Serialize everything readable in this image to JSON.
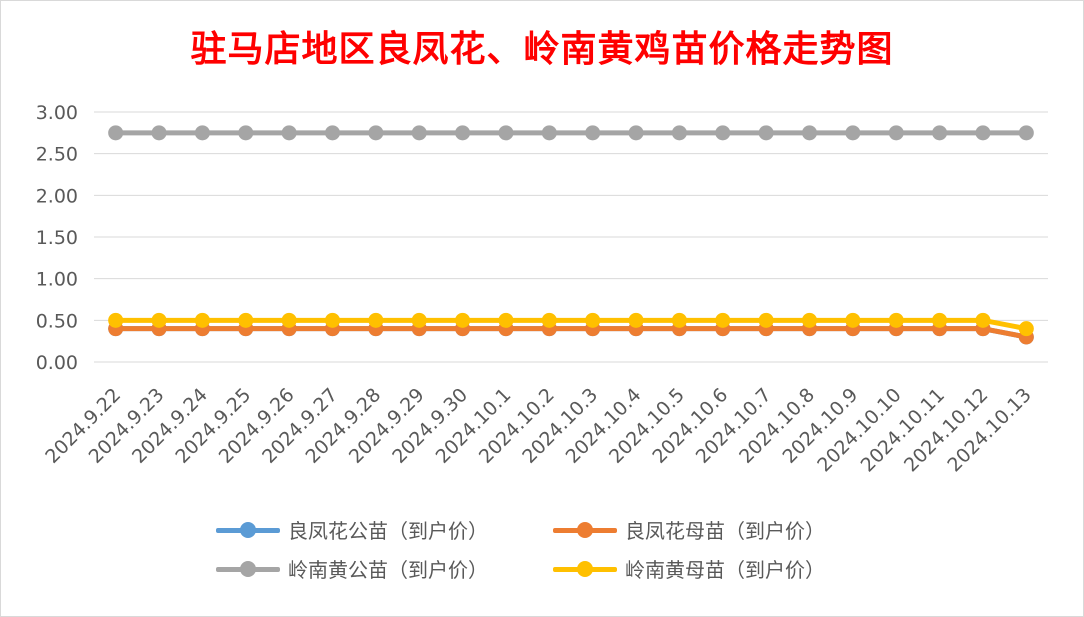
{
  "chart_data": {
    "type": "line",
    "title": "驻马店地区良凤花、岭南黄鸡苗价格走势图",
    "categories": [
      "2024.9.22",
      "2024.9.23",
      "2024.9.24",
      "2024.9.25",
      "2024.9.26",
      "2024.9.27",
      "2024.9.28",
      "2024.9.29",
      "2024.9.30",
      "2024.10.1",
      "2024.10.2",
      "2024.10.3",
      "2024.10.4",
      "2024.10.5",
      "2024.10.6",
      "2024.10.7",
      "2024.10.8",
      "2024.10.9",
      "2024.10.10",
      "2024.10.11",
      "2024.10.12",
      "2024.10.13"
    ],
    "y_ticks": [
      "0.00",
      "0.50",
      "1.00",
      "1.50",
      "2.00",
      "2.50",
      "3.00"
    ],
    "ylim": [
      0,
      3
    ],
    "grid": true,
    "legend_position": "bottom",
    "series": [
      {
        "name": "良凤花公苗（到户价）",
        "color": "#5b9bd5",
        "values": [
          0.4,
          0.4,
          0.4,
          0.4,
          0.4,
          0.4,
          0.4,
          0.4,
          0.4,
          0.4,
          0.4,
          0.4,
          0.4,
          0.4,
          0.4,
          0.4,
          0.4,
          0.4,
          0.4,
          0.4,
          0.4,
          0.3
        ]
      },
      {
        "name": "良凤花母苗（到户价）",
        "color": "#ed7d31",
        "values": [
          0.4,
          0.4,
          0.4,
          0.4,
          0.4,
          0.4,
          0.4,
          0.4,
          0.4,
          0.4,
          0.4,
          0.4,
          0.4,
          0.4,
          0.4,
          0.4,
          0.4,
          0.4,
          0.4,
          0.4,
          0.4,
          0.3
        ]
      },
      {
        "name": "岭南黄公苗（到户价）",
        "color": "#a5a5a5",
        "values": [
          2.75,
          2.75,
          2.75,
          2.75,
          2.75,
          2.75,
          2.75,
          2.75,
          2.75,
          2.75,
          2.75,
          2.75,
          2.75,
          2.75,
          2.75,
          2.75,
          2.75,
          2.75,
          2.75,
          2.75,
          2.75,
          2.75
        ]
      },
      {
        "name": "岭南黄母苗（到户价）",
        "color": "#ffc000",
        "values": [
          0.5,
          0.5,
          0.5,
          0.5,
          0.5,
          0.5,
          0.5,
          0.5,
          0.5,
          0.5,
          0.5,
          0.5,
          0.5,
          0.5,
          0.5,
          0.5,
          0.5,
          0.5,
          0.5,
          0.5,
          0.5,
          0.4
        ]
      }
    ]
  }
}
